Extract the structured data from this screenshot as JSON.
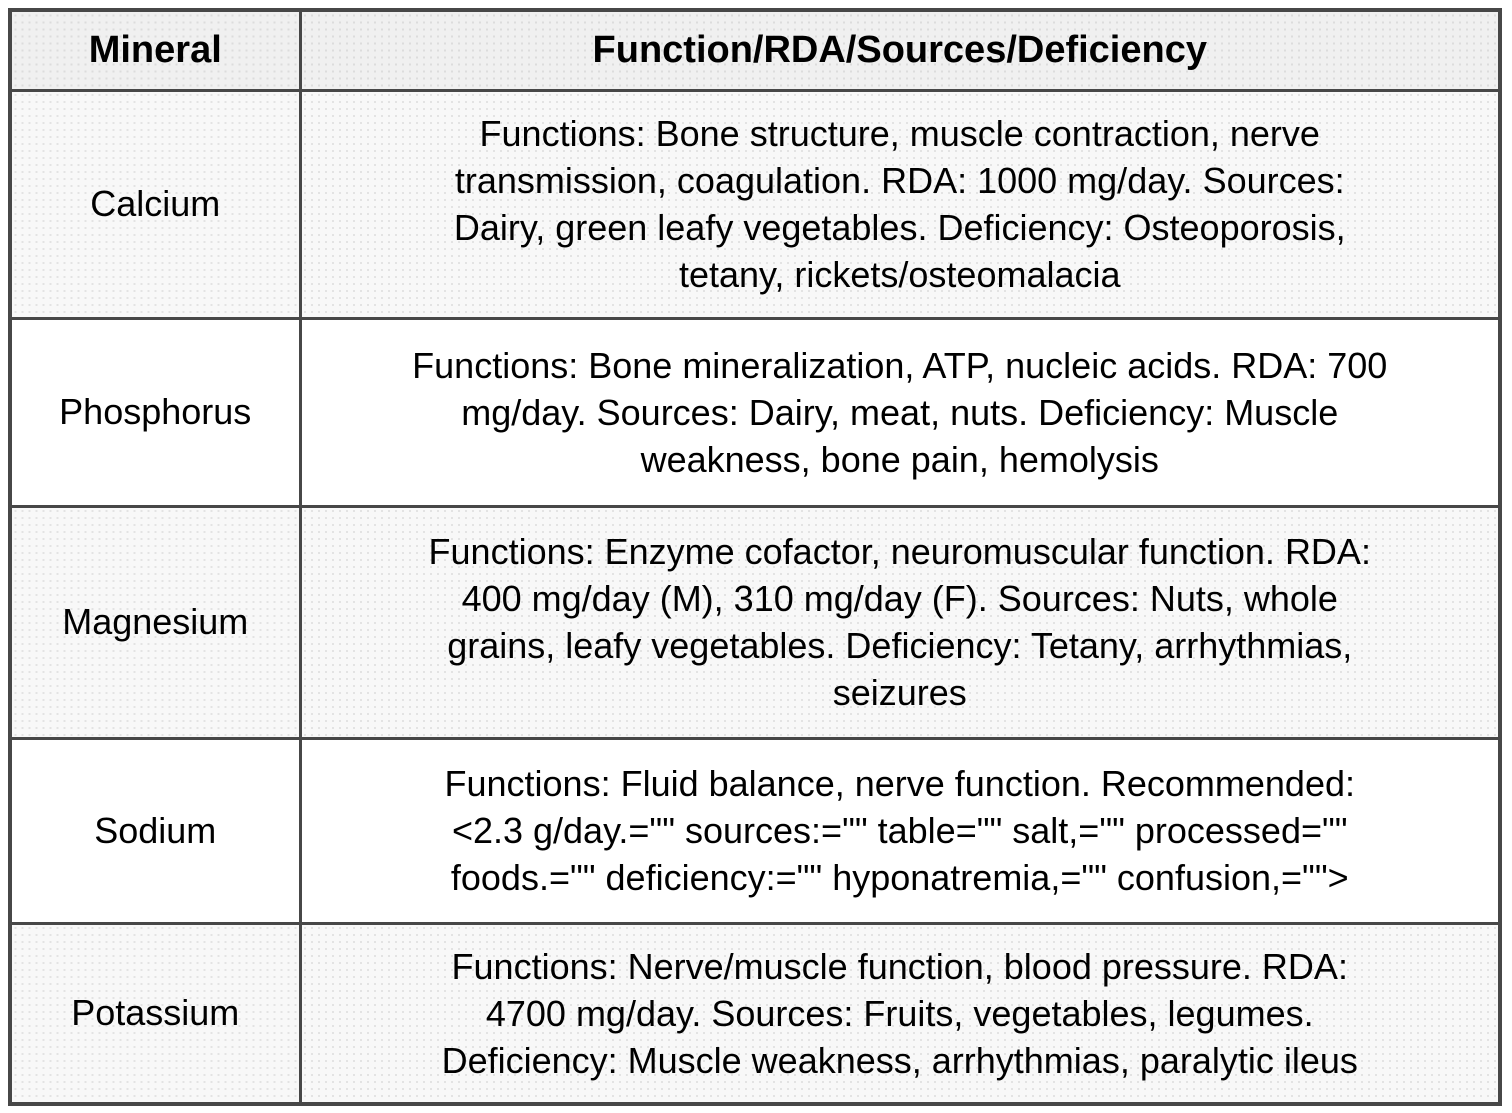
{
  "table": {
    "headers": {
      "mineral": "Mineral",
      "details": "Function/RDA/Sources/Deficiency"
    },
    "rows": [
      {
        "mineral": "Calcium",
        "details": "Functions: Bone structure, muscle contraction, nerve\ntransmission, coagulation. RDA: 1000 mg/day. Sources:\nDairy, green leafy vegetables. Deficiency: Osteoporosis,\ntetany, rickets/osteomalacia"
      },
      {
        "mineral": "Phosphorus",
        "details": "Functions: Bone mineralization, ATP, nucleic acids. RDA: 700\nmg/day. Sources: Dairy, meat, nuts. Deficiency: Muscle\nweakness, bone pain, hemolysis"
      },
      {
        "mineral": "Magnesium",
        "details": "Functions: Enzyme cofactor, neuromuscular function. RDA:\n400 mg/day (M), 310 mg/day (F). Sources: Nuts, whole\ngrains, leafy vegetables. Deficiency: Tetany, arrhythmias,\nseizures"
      },
      {
        "mineral": "Sodium",
        "details": "Functions: Fluid balance, nerve function. Recommended:\n<2.3 g/day.=\"\" sources:=\"\" table=\"\" salt,=\"\" processed=\"\"\nfoods.=\"\" deficiency:=\"\" hyponatremia,=\"\" confusion,=\"\">"
      },
      {
        "mineral": "Potassium",
        "details": "Functions: Nerve/muscle function, blood pressure. RDA:\n4700 mg/day. Sources: Fruits, vegetables, legumes.\nDeficiency: Muscle weakness, arrhythmias, paralytic ileus"
      }
    ]
  },
  "colors": {
    "border": "#474747",
    "header_bg": "#f0f0f0",
    "stripe_bg": "#f8f8f8",
    "row_bg": "#ffffff",
    "text": "#000000"
  }
}
